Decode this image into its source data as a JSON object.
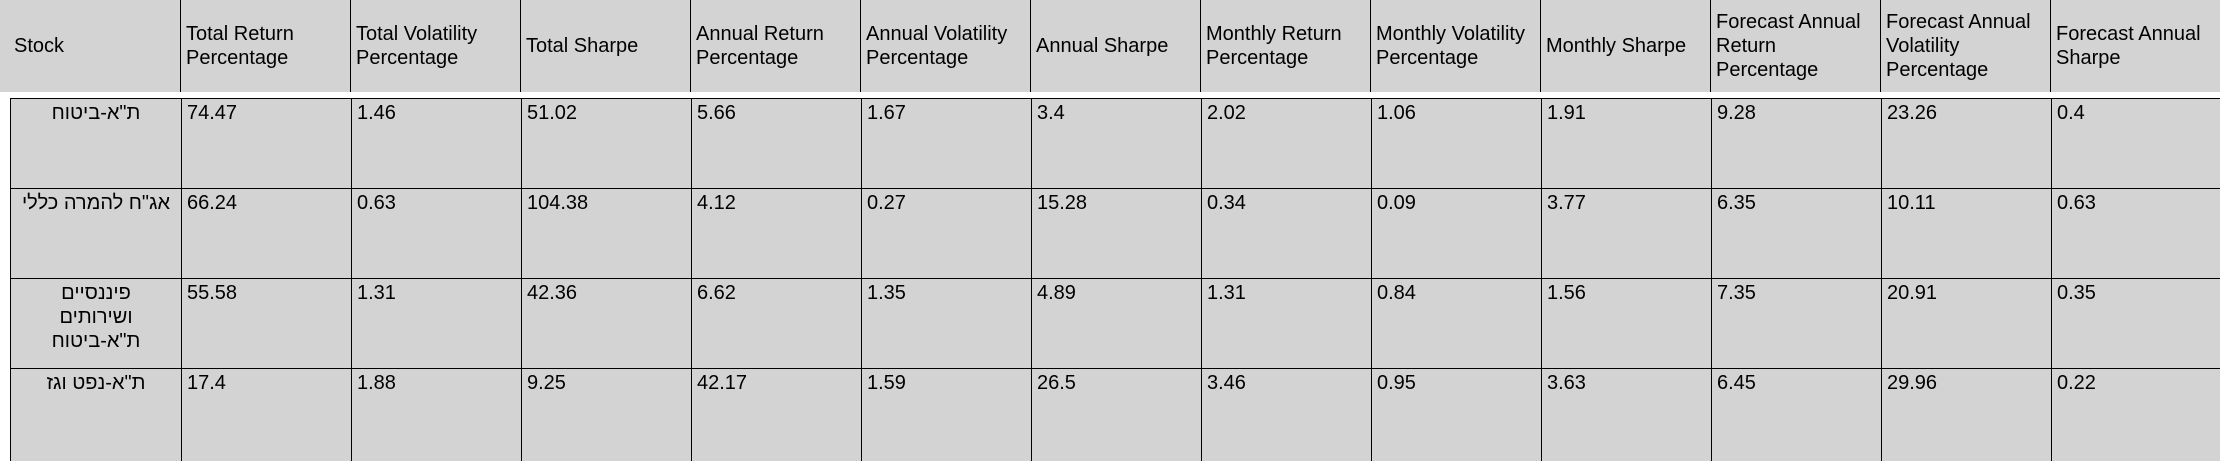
{
  "table": {
    "headers": [
      "Stock",
      "Total Return Percentage",
      "Total Volatility Percentage",
      "Total Sharpe",
      "Annual Return Percentage",
      "Annual Volatility Percentage",
      "Annual Sharpe",
      "Monthly Return Percentage",
      "Monthly Volatility Percentage",
      "Monthly Sharpe",
      "Forecast Annual Return Percentage",
      "Forecast Annual Volatility Percentage",
      "Forecast Annual Sharpe"
    ],
    "rows": [
      [
        "ת\"א-ביטוח",
        "74.47",
        "1.46",
        "51.02",
        "5.66",
        "1.67",
        "3.4",
        "2.02",
        "1.06",
        "1.91",
        "9.28",
        "23.26",
        "0.4"
      ],
      [
        "אג\"ח להמרה כללי",
        "66.24",
        "0.63",
        "104.38",
        "4.12",
        "0.27",
        "15.28",
        "0.34",
        "0.09",
        "3.77",
        "6.35",
        "10.11",
        "0.63"
      ],
      [
        "פיננסיים ושירותים ת\"א-ביטוח",
        "55.58",
        "1.31",
        "42.36",
        "6.62",
        "1.35",
        "4.89",
        "1.31",
        "0.84",
        "1.56",
        "7.35",
        "20.91",
        "0.35"
      ],
      [
        "ת\"א-נפט וגז",
        "17.4",
        "1.88",
        "9.25",
        "42.17",
        "1.59",
        "26.5",
        "3.46",
        "0.95",
        "3.63",
        "6.45",
        "29.96",
        "0.22"
      ]
    ]
  },
  "colors": {
    "cell_background": "#d3d3d3",
    "grid_line": "#000000",
    "page_background": "#ffffff"
  }
}
